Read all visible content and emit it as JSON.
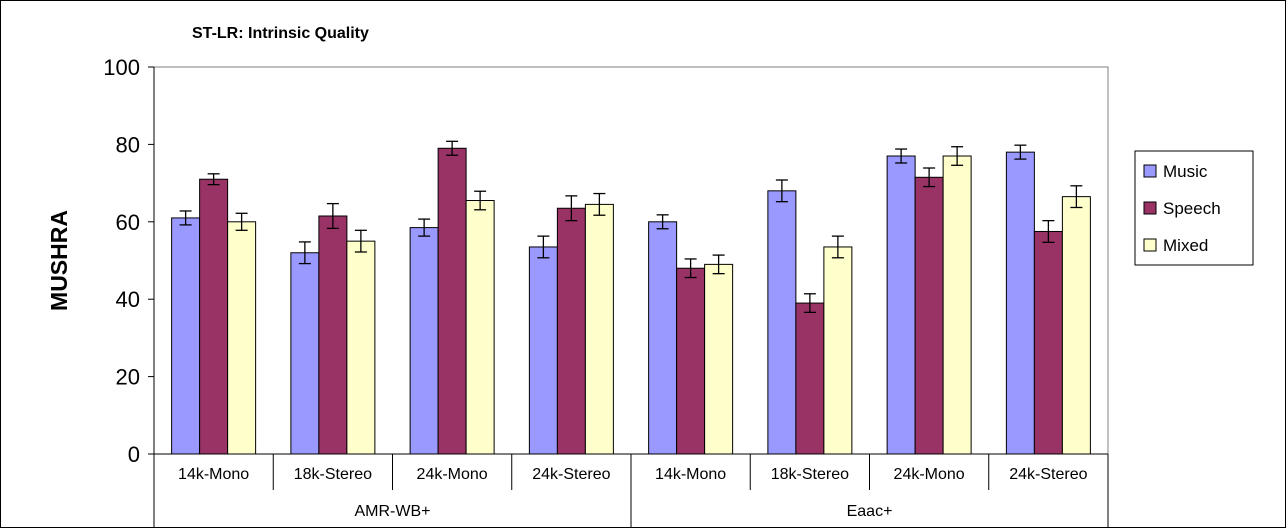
{
  "chart_data": {
    "type": "bar",
    "title": "ST-LR: Intrinsic Quality",
    "xlabel": "",
    "ylabel": "MUSHRA",
    "ylim": [
      0,
      100
    ],
    "yticks": [
      0,
      20,
      40,
      60,
      80,
      100
    ],
    "grid": false,
    "legend_position": "right",
    "groups": [
      {
        "name": "AMR-WB+",
        "categories": [
          "14k-Mono",
          "18k-Stereo",
          "24k-Mono",
          "24k-Stereo"
        ]
      },
      {
        "name": "Eaac+",
        "categories": [
          "14k-Mono",
          "18k-Stereo",
          "24k-Mono",
          "24k-Stereo"
        ]
      }
    ],
    "series": [
      {
        "name": "Music",
        "color": "#9999ff",
        "values": [
          61,
          52,
          58.5,
          53.5,
          60,
          68,
          77,
          78
        ],
        "error": [
          1.8,
          2.8,
          2.2,
          2.8,
          1.8,
          2.8,
          1.8,
          1.8
        ]
      },
      {
        "name": "Speech",
        "color": "#993366",
        "values": [
          71,
          61.5,
          79,
          63.5,
          48,
          39,
          71.5,
          57.5
        ],
        "error": [
          1.4,
          3.2,
          1.8,
          3.2,
          2.4,
          2.4,
          2.4,
          2.8
        ]
      },
      {
        "name": "Mixed",
        "color": "#ffffcc",
        "values": [
          60,
          55,
          65.5,
          64.5,
          49,
          53.5,
          77,
          66.5
        ],
        "error": [
          2.2,
          2.8,
          2.4,
          2.8,
          2.4,
          2.8,
          2.4,
          2.8
        ]
      }
    ]
  }
}
